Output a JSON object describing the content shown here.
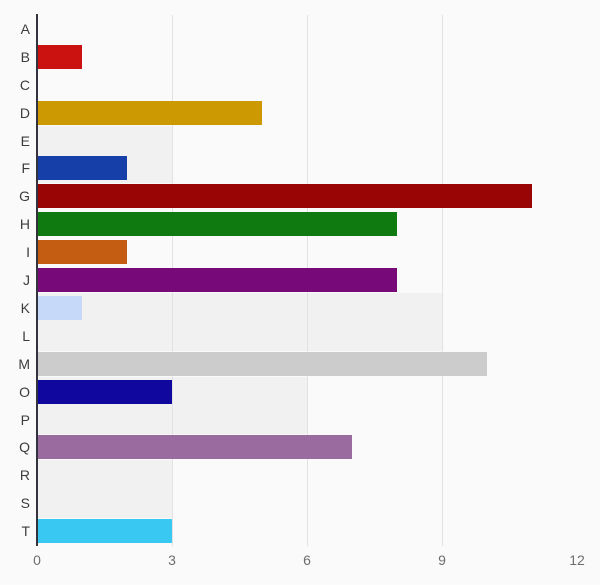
{
  "chart_data": {
    "type": "bar",
    "orientation": "horizontal",
    "title": "",
    "xlabel": "",
    "ylabel": "",
    "xlim": [
      0,
      12
    ],
    "xticks": [
      0,
      3,
      6,
      9,
      12
    ],
    "gridlines_at": [
      3,
      6,
      9
    ],
    "legend": "none",
    "categories": [
      "A",
      "B",
      "C",
      "D",
      "E",
      "F",
      "G",
      "H",
      "I",
      "J",
      "K",
      "L",
      "M",
      "O",
      "P",
      "Q",
      "R",
      "S",
      "T"
    ],
    "values": [
      0,
      1,
      0,
      5,
      0,
      2,
      11,
      8,
      2,
      8,
      1,
      0,
      10,
      3,
      0,
      7,
      0,
      0,
      3
    ],
    "bar_colors": [
      null,
      "#cc1111",
      null,
      "#cc9903",
      null,
      "#1640a8",
      "#990404",
      "#0f7a0f",
      "#c45c12",
      "#770a78",
      "#c7d9f9",
      null,
      "#cccccc",
      "#10089e",
      null,
      "#9a6b9e",
      null,
      null,
      "#38c8f2"
    ],
    "background_panels": [
      {
        "rows": [
          "E",
          "F"
        ],
        "value": 3
      },
      {
        "rows": [
          "K",
          "L"
        ],
        "value": 9
      },
      {
        "rows": [
          "O",
          "P"
        ],
        "value": 6
      },
      {
        "rows": [
          "R",
          "S"
        ],
        "value": 3
      }
    ]
  },
  "colors": {
    "background": "#fafafa",
    "panel": "#f1f1f2",
    "gridline": "#e2e2e2",
    "axis_line": "#33333d",
    "tick_label": "#6e6e6e",
    "category_label": "#3c3c3c"
  }
}
